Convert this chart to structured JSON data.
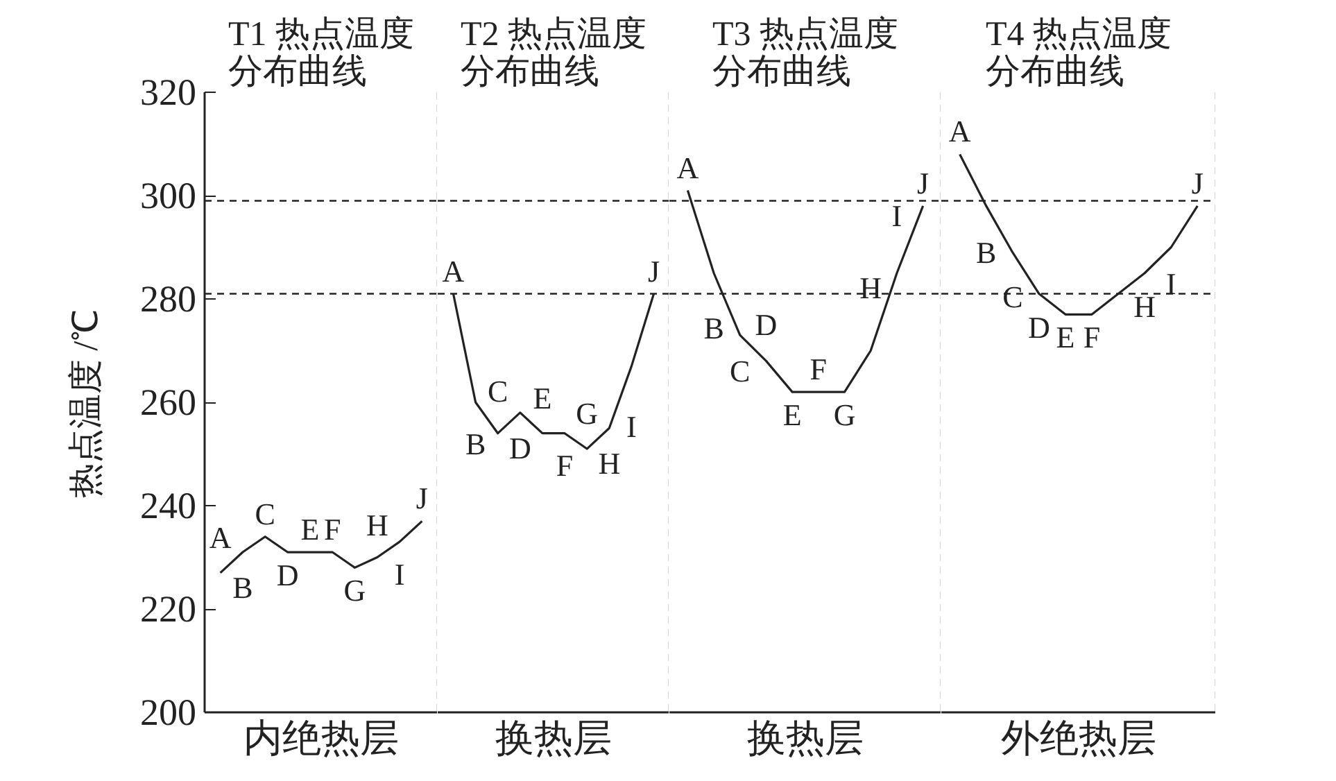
{
  "chart_data": [
    {
      "type": "line",
      "title": "T1 热点温度分布曲线",
      "xlabel": "内绝热层",
      "ylabel": "热点温度 /℃",
      "categories": [
        "A",
        "B",
        "C",
        "D",
        "E",
        "F",
        "G",
        "H",
        "I",
        "J"
      ],
      "values": [
        227,
        231,
        234,
        231,
        231,
        231,
        228,
        230,
        233,
        237
      ],
      "color": "#222222",
      "ylim": [
        200,
        320
      ],
      "yticks": [
        200,
        220,
        240,
        260,
        280,
        300,
        320
      ],
      "tick_labels": "y",
      "ref_lines": [
        {
          "axis": "y",
          "value": 299,
          "line_style": "dashed"
        },
        {
          "axis": "y",
          "value": 281,
          "line_style": "dashed"
        }
      ]
    },
    {
      "type": "line",
      "title": "T2 热点温度分布曲线",
      "xlabel": "换热层",
      "categories": [
        "A",
        "B",
        "C",
        "D",
        "E",
        "F",
        "G",
        "H",
        "I",
        "J"
      ],
      "values": [
        281,
        260,
        254,
        258,
        254,
        254,
        251,
        255,
        267,
        281
      ],
      "color": "#222222",
      "ylim": [
        200,
        320
      ],
      "tick_labels": false,
      "ref_lines": [
        {
          "axis": "y",
          "value": 299,
          "line_style": "dashed"
        },
        {
          "axis": "y",
          "value": 281,
          "line_style": "dashed"
        }
      ]
    },
    {
      "type": "line",
      "title": "T3 热点温度分布曲线",
      "xlabel": "换热层",
      "categories": [
        "A",
        "B",
        "C",
        "D",
        "E",
        "F",
        "G",
        "H",
        "I",
        "J"
      ],
      "values": [
        301,
        285,
        273,
        268,
        262,
        262,
        262,
        270,
        285,
        298
      ],
      "color": "#222222",
      "ylim": [
        200,
        320
      ],
      "tick_labels": false,
      "ref_lines": [
        {
          "axis": "y",
          "value": 299,
          "line_style": "dashed"
        },
        {
          "axis": "y",
          "value": 281,
          "line_style": "dashed"
        }
      ]
    },
    {
      "type": "line",
      "title": "T4 热点温度分布曲线",
      "xlabel": "外绝热层",
      "categories": [
        "A",
        "B",
        "C",
        "D",
        "E",
        "F",
        null,
        "H",
        "I",
        "J"
      ],
      "values": [
        308,
        298,
        289,
        281,
        277,
        277,
        281,
        285,
        290,
        298
      ],
      "color": "#222222",
      "ylim": [
        200,
        320
      ],
      "tick_labels": false,
      "ref_lines": [
        {
          "axis": "y",
          "value": 299,
          "line_style": "dashed"
        },
        {
          "axis": "y",
          "value": 281,
          "line_style": "dashed"
        }
      ]
    }
  ]
}
